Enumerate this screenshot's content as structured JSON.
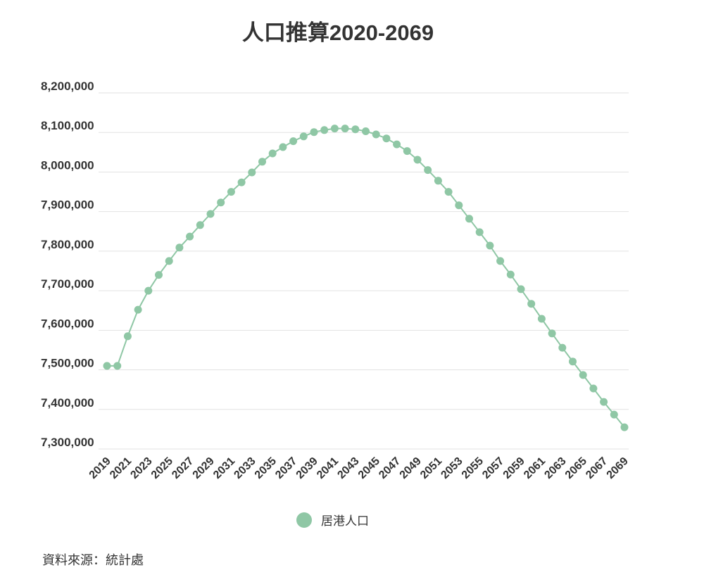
{
  "chart_data": {
    "type": "line",
    "title": "人口推算2020-2069",
    "x": [
      2019,
      2020,
      2021,
      2022,
      2023,
      2024,
      2025,
      2026,
      2027,
      2028,
      2029,
      2030,
      2031,
      2032,
      2033,
      2034,
      2035,
      2036,
      2037,
      2038,
      2039,
      2040,
      2041,
      2042,
      2043,
      2044,
      2045,
      2046,
      2047,
      2048,
      2049,
      2050,
      2051,
      2052,
      2053,
      2054,
      2055,
      2056,
      2057,
      2058,
      2059,
      2060,
      2061,
      2062,
      2063,
      2064,
      2065,
      2066,
      2067,
      2068,
      2069
    ],
    "xlim": [
      2019,
      2069
    ],
    "x_ticks": [
      2019,
      2021,
      2023,
      2025,
      2027,
      2029,
      2031,
      2033,
      2035,
      2037,
      2039,
      2041,
      2043,
      2045,
      2047,
      2049,
      2051,
      2053,
      2055,
      2057,
      2059,
      2061,
      2063,
      2065,
      2067,
      2069
    ],
    "x_tick_labels": [
      "2019",
      "2021",
      "2023",
      "2025",
      "2027",
      "2029",
      "2031",
      "2033",
      "2035",
      "2037",
      "2039",
      "2041",
      "2043",
      "2045",
      "2047",
      "2049",
      "2051",
      "2053",
      "2055",
      "2057",
      "2059",
      "2061",
      "2063",
      "2065",
      "2067",
      "2069"
    ],
    "ylim": [
      7300000,
      8200000
    ],
    "y_ticks": [
      8200000,
      8100000,
      8000000,
      7900000,
      7800000,
      7700000,
      7600000,
      7500000,
      7400000,
      7300000
    ],
    "y_tick_labels": [
      "8,200,000",
      "8,100,000",
      "8,000,000",
      "7,900,000",
      "7,800,000",
      "7,700,000",
      "7,600,000",
      "7,500,000",
      "7,400,000",
      "7,300,000"
    ],
    "grid": true,
    "legend": "bottom-center",
    "series": [
      {
        "name": "居港人口",
        "color": "#8fc7a5",
        "values": [
          7510000,
          7510000,
          7585000,
          7652000,
          7700000,
          7740000,
          7775000,
          7809000,
          7837000,
          7866000,
          7894000,
          7923000,
          7950000,
          7974000,
          7999000,
          8026000,
          8047000,
          8063000,
          8078000,
          8090000,
          8101000,
          8106000,
          8110000,
          8110000,
          8108000,
          8103000,
          8095000,
          8085000,
          8070000,
          8053000,
          8031000,
          8005000,
          7978000,
          7950000,
          7916000,
          7882000,
          7848000,
          7814000,
          7775000,
          7741000,
          7704000,
          7667000,
          7629000,
          7592000,
          7556000,
          7521000,
          7487000,
          7453000,
          7419000,
          7387000,
          7355000
        ]
      }
    ]
  },
  "source": "資料來源：統計處"
}
